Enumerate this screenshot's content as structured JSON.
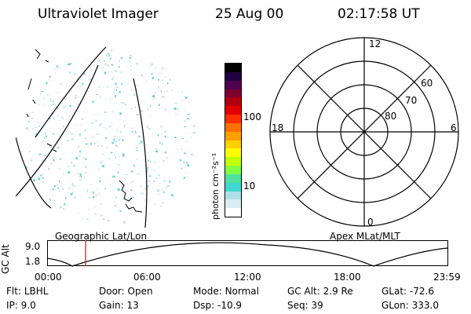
{
  "header": {
    "instrument": "Ultraviolet Imager",
    "date": "25 Aug 00",
    "time": "02:17:58 UT"
  },
  "left_panel": {
    "caption": "Geographic Lat/Lon"
  },
  "right_panel": {
    "caption": "Apex MLat/MLT",
    "mlt_labels": [
      "12",
      "18",
      "6",
      "0"
    ],
    "mlat_labels": [
      "60",
      "70",
      "80"
    ]
  },
  "colorbar": {
    "unit_label": "photon cm⁻²s⁻¹",
    "tick_labels": [
      "100",
      "10"
    ],
    "colors": [
      "#ffffff",
      "#d8eef2",
      "#b0e0e8",
      "#40d8d0",
      "#50e0a0",
      "#80ff40",
      "#c0ff00",
      "#ffff00",
      "#ffd000",
      "#ffa000",
      "#ff7000",
      "#ff3000",
      "#e00000",
      "#b00010",
      "#800030",
      "#500050",
      "#200040",
      "#000000"
    ]
  },
  "altitude_plot": {
    "ylabel": "GC Alt",
    "y_ticks": [
      "9.0",
      "1.8"
    ],
    "x_ticks": [
      "00:00",
      "06:00",
      "12:00",
      "18:00",
      "23:59"
    ],
    "marker_color": "#ff0000"
  },
  "info": {
    "row1": [
      {
        "label": "Flt:",
        "value": "LBHL"
      },
      {
        "label": "Door:",
        "value": "Open"
      },
      {
        "label": "Mode:",
        "value": "Normal"
      },
      {
        "label": "GC Alt:",
        "value": "2.9 Re"
      },
      {
        "label": "GLat:",
        "value": "-72.6"
      }
    ],
    "row2": [
      {
        "label": "IP:",
        "value": "9.0"
      },
      {
        "label": "Gain:",
        "value": "13"
      },
      {
        "label": "Dsp:",
        "value": "-10.9"
      },
      {
        "label": "Seq:",
        "value": "39"
      },
      {
        "label": "GLon:",
        "value": "333.0"
      }
    ]
  }
}
